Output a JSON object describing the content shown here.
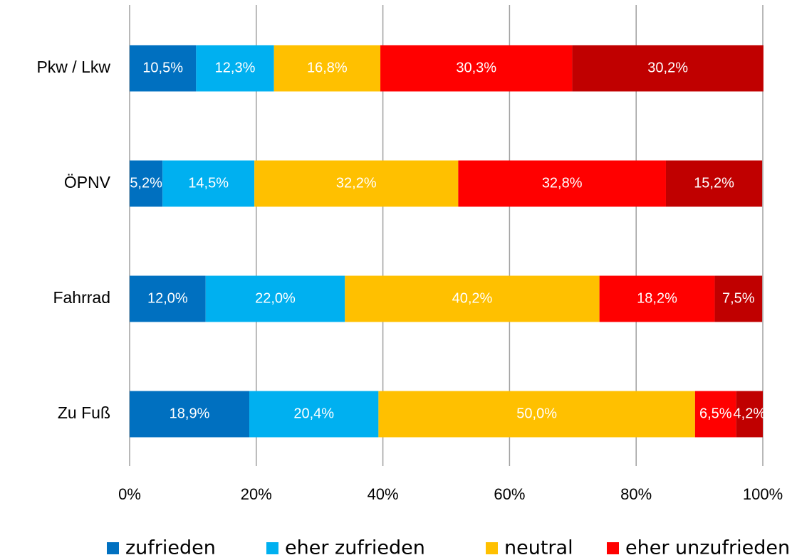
{
  "chart_data": {
    "type": "stacked_barh",
    "categories": [
      "Pkw / Lkw",
      "ÖPNV",
      "Fahrrad",
      "Zu Fuß"
    ],
    "series": [
      {
        "name": "zufrieden",
        "color": "#0070c0",
        "values": [
          10.5,
          5.2,
          12.0,
          18.9
        ],
        "value_labels": [
          "10,5%",
          "5,2%",
          "12,0%",
          "18,9%"
        ]
      },
      {
        "name": "eher zufrieden",
        "color": "#00b0f0",
        "values": [
          12.3,
          14.5,
          22.0,
          20.4
        ],
        "value_labels": [
          "12,3%",
          "14,5%",
          "22,0%",
          "20,4%"
        ]
      },
      {
        "name": "neutral",
        "color": "#ffc000",
        "values": [
          16.8,
          32.2,
          40.2,
          50.0
        ],
        "value_labels": [
          "16,8%",
          "32,2%",
          "40,2%",
          "50,0%"
        ]
      },
      {
        "name": "eher unzufrieden",
        "color": "#ff0000",
        "values": [
          30.3,
          32.8,
          18.2,
          6.5
        ],
        "value_labels": [
          "30,3%",
          "32,8%",
          "18,2%",
          "6,5%"
        ]
      },
      {
        "color": "#c00000",
        "values": [
          30.2,
          15.2,
          7.5,
          4.2
        ],
        "value_labels": [
          "30,2%",
          "15,2%",
          "7,5%",
          "4,2%"
        ]
      }
    ],
    "xlim": [
      0,
      100
    ],
    "xticks": [
      {
        "value": 0,
        "label": "0%"
      },
      {
        "value": 20,
        "label": "20%"
      },
      {
        "value": 40,
        "label": "40%"
      },
      {
        "value": 60,
        "label": "60%"
      },
      {
        "value": 80,
        "label": "80%"
      },
      {
        "value": 100,
        "label": "100%"
      }
    ],
    "grid": true,
    "legend": "bottom"
  }
}
